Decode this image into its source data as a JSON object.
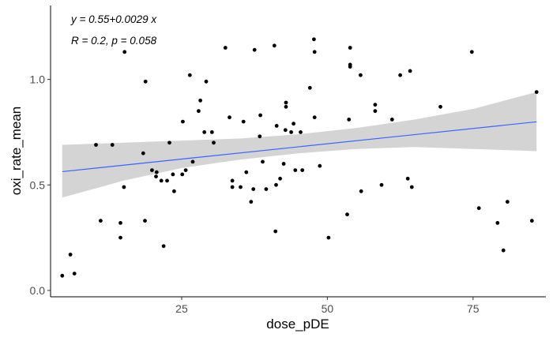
{
  "chart_data": {
    "type": "scatter",
    "xlabel": "dose_pDE",
    "ylabel": "oxi_rate_mean",
    "xlim": [
      2.5,
      87.5
    ],
    "ylim": [
      -0.03,
      1.35
    ],
    "x_ticks": [
      25,
      50,
      75
    ],
    "x_tick_labels": [
      "25",
      "50",
      "75"
    ],
    "y_ticks": [
      0.0,
      0.5,
      1.0
    ],
    "y_tick_labels": [
      "0.0",
      "0.5",
      "1.0"
    ],
    "grid": false,
    "annotations": [
      "y = 0.55+0.0029 x",
      "R = 0.2, p = 0.058"
    ],
    "regression": {
      "intercept": 0.55,
      "slope": 0.0029,
      "x_range": [
        4.5,
        85.9
      ]
    },
    "confidence_band": [
      {
        "x": 4.5,
        "lower": 0.44,
        "upper": 0.69
      },
      {
        "x": 15,
        "lower": 0.52,
        "upper": 0.7
      },
      {
        "x": 25,
        "lower": 0.58,
        "upper": 0.71
      },
      {
        "x": 35,
        "lower": 0.62,
        "upper": 0.72
      },
      {
        "x": 45,
        "lower": 0.65,
        "upper": 0.74
      },
      {
        "x": 55,
        "lower": 0.67,
        "upper": 0.77
      },
      {
        "x": 65,
        "lower": 0.68,
        "upper": 0.81
      },
      {
        "x": 75,
        "lower": 0.67,
        "upper": 0.86
      },
      {
        "x": 85.9,
        "lower": 0.66,
        "upper": 0.94
      }
    ],
    "colors": {
      "line": "#3366ff",
      "band": "#d4d4d4",
      "points": "#000000"
    },
    "points": [
      [
        4.5,
        0.07
      ],
      [
        5.9,
        0.17
      ],
      [
        6.6,
        0.08
      ],
      [
        10.3,
        0.69
      ],
      [
        11.1,
        0.33
      ],
      [
        13.1,
        0.69
      ],
      [
        14.5,
        0.32
      ],
      [
        14.5,
        0.25
      ],
      [
        15.1,
        0.49
      ],
      [
        15.2,
        1.13
      ],
      [
        18.4,
        0.65
      ],
      [
        18.7,
        0.33
      ],
      [
        18.8,
        0.99
      ],
      [
        19.9,
        0.57
      ],
      [
        20.6,
        0.54
      ],
      [
        20.7,
        0.56
      ],
      [
        21.5,
        0.52
      ],
      [
        21.9,
        0.21
      ],
      [
        22.5,
        0.52
      ],
      [
        22.9,
        0.7
      ],
      [
        23.5,
        0.55
      ],
      [
        23.7,
        0.47
      ],
      [
        25.1,
        0.55
      ],
      [
        25.2,
        0.8
      ],
      [
        25.7,
        0.57
      ],
      [
        26.4,
        1.02
      ],
      [
        26.9,
        0.61
      ],
      [
        27.9,
        0.85
      ],
      [
        28.2,
        0.9
      ],
      [
        28.9,
        0.75
      ],
      [
        29.2,
        0.99
      ],
      [
        30.2,
        0.75
      ],
      [
        30.5,
        0.7
      ],
      [
        32.5,
        1.15
      ],
      [
        33.2,
        0.82
      ],
      [
        33.7,
        0.49
      ],
      [
        33.7,
        0.52
      ],
      [
        35.1,
        0.49
      ],
      [
        35.6,
        0.8
      ],
      [
        36.1,
        0.56
      ],
      [
        36.9,
        0.42
      ],
      [
        37.3,
        0.48
      ],
      [
        37.5,
        1.14
      ],
      [
        38.4,
        0.73
      ],
      [
        38.5,
        0.83
      ],
      [
        38.9,
        0.61
      ],
      [
        39.5,
        0.48
      ],
      [
        40.9,
        1.16
      ],
      [
        41.1,
        0.28
      ],
      [
        41.2,
        0.5
      ],
      [
        41.3,
        0.78
      ],
      [
        41.9,
        0.53
      ],
      [
        42.5,
        0.6
      ],
      [
        42.8,
        0.76
      ],
      [
        42.9,
        0.87
      ],
      [
        42.9,
        0.89
      ],
      [
        43.8,
        0.75
      ],
      [
        44.2,
        0.79
      ],
      [
        44.5,
        0.57
      ],
      [
        45.4,
        0.75
      ],
      [
        45.7,
        0.57
      ],
      [
        47.0,
        0.96
      ],
      [
        47.7,
        1.19
      ],
      [
        47.8,
        1.13
      ],
      [
        47.8,
        0.82
      ],
      [
        48.7,
        0.59
      ],
      [
        50.2,
        0.25
      ],
      [
        53.4,
        0.36
      ],
      [
        53.7,
        0.81
      ],
      [
        53.9,
        1.06
      ],
      [
        53.9,
        1.07
      ],
      [
        53.9,
        1.15
      ],
      [
        55.7,
        1.02
      ],
      [
        55.8,
        0.47
      ],
      [
        58.2,
        0.88
      ],
      [
        58.2,
        0.85
      ],
      [
        59.3,
        0.5
      ],
      [
        61.1,
        0.81
      ],
      [
        62.5,
        1.02
      ],
      [
        63.8,
        0.53
      ],
      [
        64.2,
        1.04
      ],
      [
        64.5,
        0.49
      ],
      [
        69.4,
        0.87
      ],
      [
        74.8,
        1.13
      ],
      [
        76.0,
        0.39
      ],
      [
        79.2,
        0.32
      ],
      [
        80.2,
        0.19
      ],
      [
        80.9,
        0.42
      ],
      [
        85.1,
        0.33
      ],
      [
        85.9,
        0.94
      ]
    ]
  }
}
